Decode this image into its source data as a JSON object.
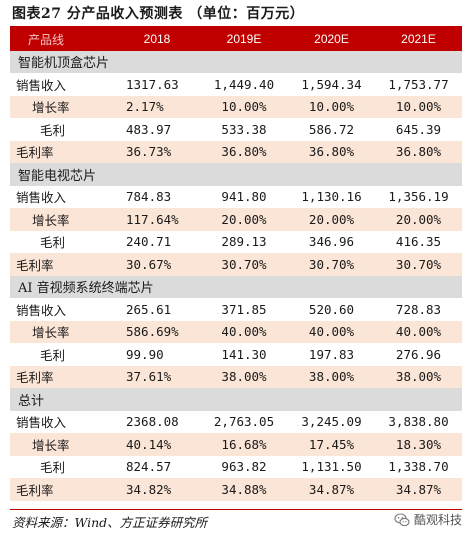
{
  "title": "图表27   分产品收入预测表 （单位：百万元）",
  "header": [
    "产品线",
    "2018",
    "2019E",
    "2020E",
    "2021E"
  ],
  "sections": [
    {
      "name": "智能机顶盒芯片",
      "rows": [
        {
          "label": "销售收入",
          "values": [
            "1317.63",
            "1,449.40",
            "1,594.34",
            "1,753.77"
          ]
        },
        {
          "label": "增长率",
          "values": [
            "2.17%",
            "10.00%",
            "10.00%",
            "10.00%"
          ]
        },
        {
          "label": "毛利",
          "values": [
            "483.97",
            "533.38",
            "586.72",
            "645.39"
          ]
        },
        {
          "label": "毛利率",
          "values": [
            "36.73%",
            "36.80%",
            "36.80%",
            "36.80%"
          ]
        }
      ]
    },
    {
      "name": "智能电视芯片",
      "rows": [
        {
          "label": "销售收入",
          "values": [
            "784.83",
            "941.80",
            "1,130.16",
            "1,356.19"
          ]
        },
        {
          "label": "增长率",
          "values": [
            "117.64%",
            "20.00%",
            "20.00%",
            "20.00%"
          ]
        },
        {
          "label": "毛利",
          "values": [
            "240.71",
            "289.13",
            "346.96",
            "416.35"
          ]
        },
        {
          "label": "毛利率",
          "values": [
            "30.67%",
            "30.70%",
            "30.70%",
            "30.70%"
          ]
        }
      ]
    },
    {
      "name": "AI 音视频系统终端芯片",
      "rows": [
        {
          "label": "销售收入",
          "values": [
            "265.61",
            "371.85",
            "520.60",
            "728.83"
          ]
        },
        {
          "label": "增长率",
          "values": [
            "586.69%",
            "40.00%",
            "40.00%",
            "40.00%"
          ]
        },
        {
          "label": "毛利",
          "values": [
            "99.90",
            "141.30",
            "197.83",
            "276.96"
          ]
        },
        {
          "label": "毛利率",
          "values": [
            "37.61%",
            "38.00%",
            "38.00%",
            "38.00%"
          ]
        }
      ]
    },
    {
      "name": "总计",
      "rows": [
        {
          "label": "销售收入",
          "values": [
            "2368.08",
            "2,763.05",
            "3,245.09",
            "3,838.80"
          ]
        },
        {
          "label": "增长率",
          "values": [
            "40.14%",
            "16.68%",
            "17.45%",
            "18.30%"
          ]
        },
        {
          "label": "毛利",
          "values": [
            "824.57",
            "963.82",
            "1,131.50",
            "1,338.70"
          ]
        },
        {
          "label": "毛利率",
          "values": [
            "34.82%",
            "34.88%",
            "34.87%",
            "34.87%"
          ]
        }
      ]
    }
  ],
  "source": "资料来源：Wind、方正证券研究所",
  "watermark": {
    "text": "酷观科技",
    "icon": "wechat-icon"
  }
}
